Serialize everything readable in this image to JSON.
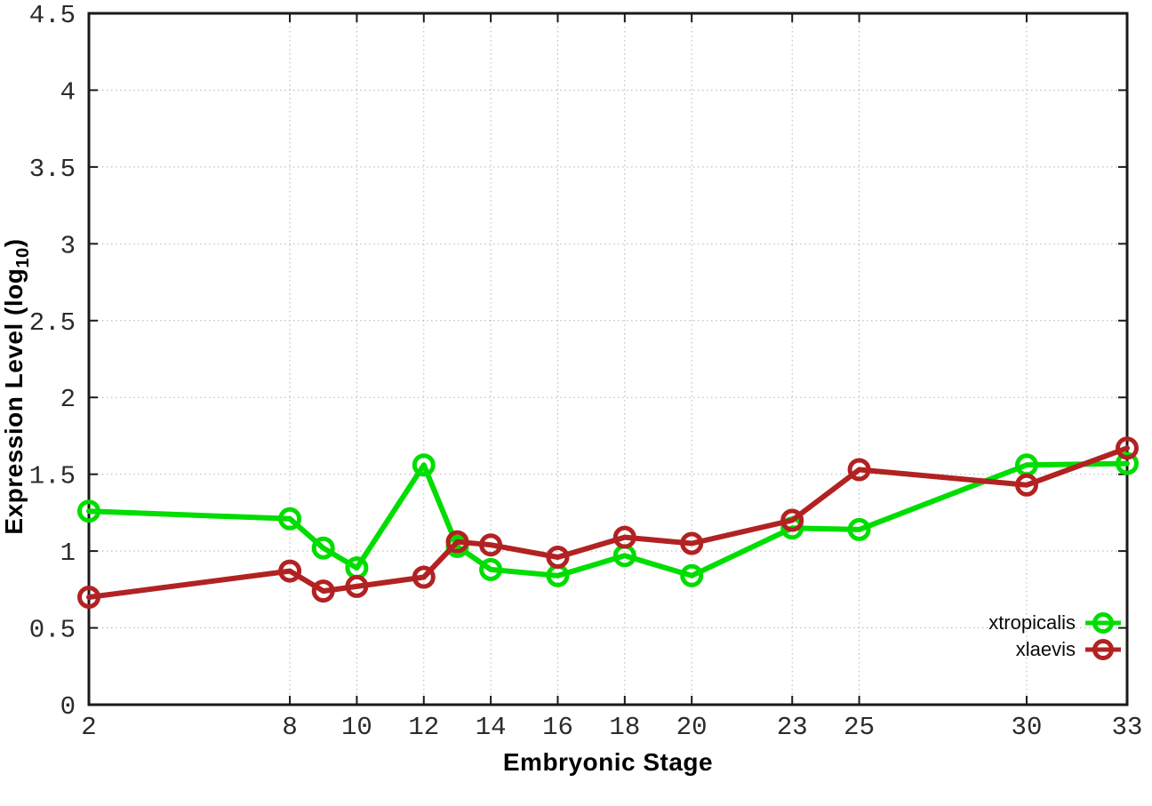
{
  "figure": {
    "xlabel": "Embryonic Stage",
    "ylabel_prefix": "Expression Level (log",
    "ylabel_sub": "10",
    "ylabel_suffix": ")"
  },
  "legend": {
    "entries": [
      {
        "label": "xtropicalis",
        "color": "#00dd00"
      },
      {
        "label": "xlaevis",
        "color": "#b22222"
      }
    ]
  },
  "chart_data": {
    "type": "line",
    "title": "",
    "xlabel": "Embryonic Stage",
    "ylabel": "Expression Level (log10)",
    "xlim": [
      2,
      33
    ],
    "ylim": [
      0,
      4.5
    ],
    "grid": true,
    "legend_position": "bottom-right",
    "xticks": [
      2,
      8,
      10,
      12,
      14,
      16,
      18,
      20,
      23,
      25,
      30,
      33
    ],
    "xtick_labels": [
      "2",
      "8",
      "10",
      "12",
      "14",
      "16",
      "18",
      "20",
      "23",
      "25",
      "30",
      "33"
    ],
    "yticks": [
      0,
      0.5,
      1,
      1.5,
      2,
      2.5,
      3,
      3.5,
      4,
      4.5
    ],
    "ytick_labels": [
      "0",
      "0.5",
      "1",
      "1.5",
      "2",
      "2.5",
      "3",
      "3.5",
      "4",
      "4.5"
    ],
    "x": [
      2,
      8,
      9,
      10,
      12,
      13,
      14,
      16,
      18,
      20,
      23,
      25,
      30,
      33
    ],
    "series": [
      {
        "name": "xtropicalis",
        "color": "#00dd00",
        "values": [
          1.26,
          1.21,
          1.02,
          0.89,
          1.56,
          1.03,
          0.88,
          0.84,
          0.97,
          0.84,
          1.15,
          1.14,
          1.56,
          1.57
        ]
      },
      {
        "name": "xlaevis",
        "color": "#b22222",
        "values": [
          0.7,
          0.87,
          0.74,
          0.77,
          0.83,
          1.06,
          1.04,
          0.96,
          1.09,
          1.05,
          1.2,
          1.53,
          1.43,
          1.67
        ]
      }
    ]
  }
}
